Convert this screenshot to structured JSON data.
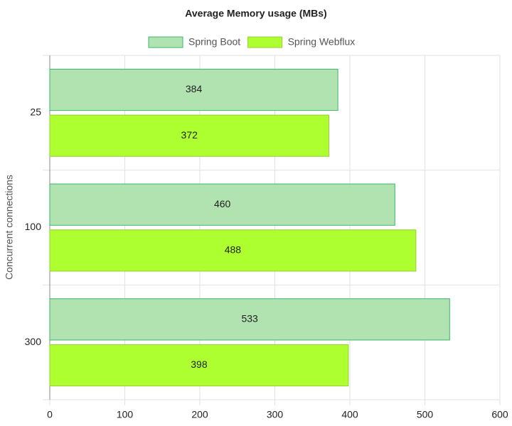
{
  "chart_data": {
    "type": "hbar",
    "title": "Average Memory usage (MBs)",
    "y_label": "Concurrent connections",
    "categories": [
      "25",
      "100",
      "300"
    ],
    "series": [
      {
        "name": "Spring Boot",
        "color": "#b0e3b0",
        "border": "#3cb371",
        "values": [
          384,
          460,
          533
        ]
      },
      {
        "name": "Spring Webflux",
        "color": "#adff2f",
        "border": "#9acd32",
        "values": [
          372,
          488,
          398
        ]
      }
    ],
    "xlim": [
      0,
      600
    ],
    "xticks": [
      0,
      100,
      200,
      300,
      400,
      500,
      600
    ],
    "grid": true,
    "legend": "top"
  }
}
